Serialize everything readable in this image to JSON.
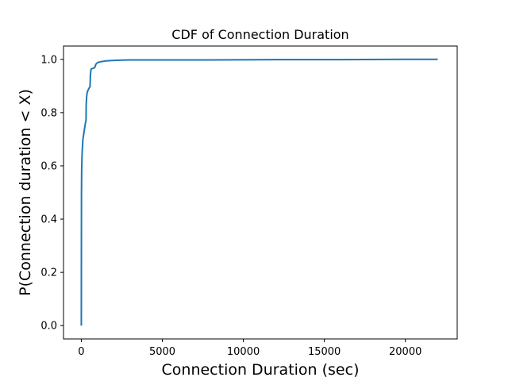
{
  "chart_data": {
    "type": "line",
    "title": "CDF of Connection Duration",
    "xlabel": "Connection Duration (sec)",
    "ylabel": "P(Connection duration < X)",
    "xlim": [
      -1100,
      23200
    ],
    "ylim": [
      -0.05,
      1.05
    ],
    "xticks": [
      0,
      5000,
      10000,
      15000,
      20000
    ],
    "yticks": [
      0.0,
      0.2,
      0.4,
      0.6,
      0.8,
      1.0
    ],
    "xtick_labels": [
      "0",
      "5000",
      "10000",
      "15000",
      "20000"
    ],
    "ytick_labels": [
      "0.0",
      "0.2",
      "0.4",
      "0.6",
      "0.8",
      "1.0"
    ],
    "grid": false,
    "series": [
      {
        "color": "#1f77b4",
        "x": [
          0,
          5,
          10,
          20,
          40,
          60,
          80,
          100,
          150,
          200,
          250,
          290,
          300,
          330,
          360,
          420,
          480,
          540,
          560,
          600,
          650,
          700,
          800,
          850,
          900,
          950,
          1000,
          1200,
          1500,
          2000,
          2500,
          3000,
          5000,
          8000,
          12000,
          16000,
          20000,
          22000
        ],
        "y": [
          0.0,
          0.3,
          0.5,
          0.58,
          0.63,
          0.66,
          0.68,
          0.7,
          0.72,
          0.74,
          0.76,
          0.77,
          0.83,
          0.86,
          0.875,
          0.885,
          0.892,
          0.898,
          0.94,
          0.963,
          0.965,
          0.966,
          0.968,
          0.972,
          0.982,
          0.985,
          0.988,
          0.991,
          0.994,
          0.996,
          0.997,
          0.998,
          0.998,
          0.998,
          0.999,
          0.999,
          1.0,
          1.0
        ]
      }
    ]
  }
}
